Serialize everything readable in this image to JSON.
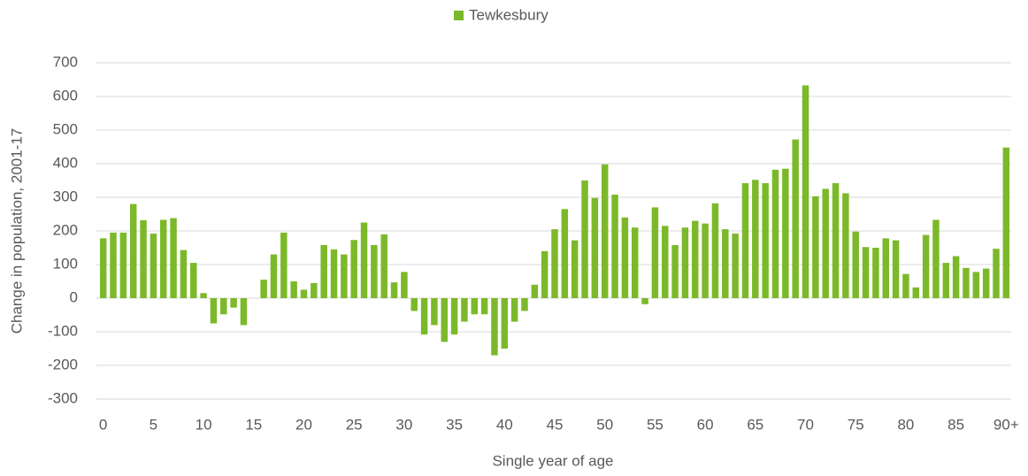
{
  "chart_data": {
    "type": "bar",
    "x_label": "Single year of age",
    "y_label": "Change in population, 2001-17",
    "categories": [
      "0",
      null,
      null,
      null,
      null,
      "5",
      null,
      null,
      null,
      null,
      "10",
      null,
      null,
      null,
      null,
      "15",
      null,
      null,
      null,
      null,
      "20",
      null,
      null,
      null,
      null,
      "25",
      null,
      null,
      null,
      null,
      "30",
      null,
      null,
      null,
      null,
      "35",
      null,
      null,
      null,
      null,
      "40",
      null,
      null,
      null,
      null,
      "45",
      null,
      null,
      null,
      null,
      "50",
      null,
      null,
      null,
      null,
      "55",
      null,
      null,
      null,
      null,
      "60",
      null,
      null,
      null,
      null,
      "65",
      null,
      null,
      null,
      null,
      "70",
      null,
      null,
      null,
      null,
      "75",
      null,
      null,
      null,
      null,
      "80",
      null,
      null,
      null,
      null,
      "85",
      null,
      null,
      null,
      null,
      "90+"
    ],
    "series": [
      {
        "name": "Tewkesbury",
        "color": "#7cb92a",
        "values": [
          178,
          195,
          195,
          280,
          232,
          192,
          233,
          238,
          143,
          105,
          15,
          -75,
          -48,
          -28,
          -80,
          0,
          55,
          130,
          195,
          50,
          25,
          45,
          158,
          145,
          130,
          173,
          225,
          158,
          190,
          47,
          78,
          -38,
          -108,
          -80,
          -130,
          -108,
          -70,
          -48,
          -48,
          -170,
          -150,
          -70,
          -38,
          40,
          140,
          205,
          265,
          172,
          350,
          298,
          398,
          308,
          240,
          210,
          -18,
          270,
          215,
          158,
          210,
          230,
          222,
          282,
          205,
          192,
          342,
          352,
          342,
          382,
          385,
          472,
          633,
          303,
          325,
          342,
          312,
          198,
          152,
          150,
          178,
          172,
          72,
          32,
          188,
          233,
          105,
          125,
          90,
          78,
          88,
          147,
          448
        ]
      }
    ],
    "ylim": [
      -300,
      700
    ],
    "yticks": [
      -300,
      -200,
      -100,
      0,
      100,
      200,
      300,
      400,
      500,
      600,
      700
    ],
    "grid": true,
    "legend": "top"
  }
}
